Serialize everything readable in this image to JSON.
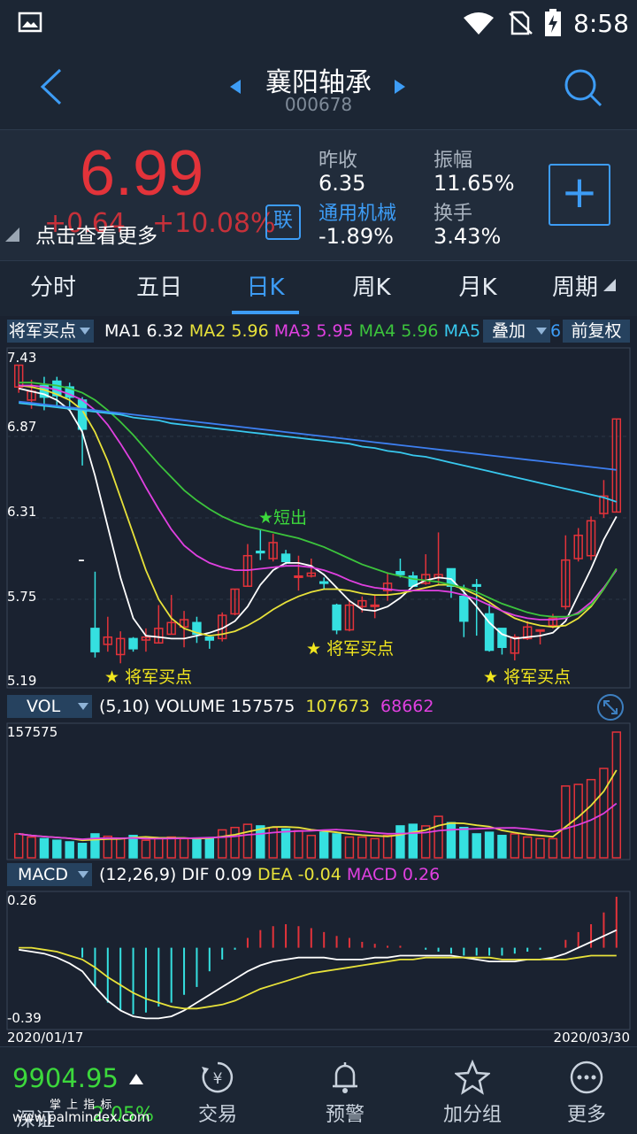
{
  "status": {
    "time": "8:58"
  },
  "header": {
    "title": "襄阳轴承",
    "code": "000678"
  },
  "quote": {
    "price": "6.99",
    "change": "+0.64",
    "change_pct": "+10.08%",
    "tap_hint": "点击查看更多",
    "link_badge": "联",
    "prev_close_label": "昨收",
    "prev_close": "6.35",
    "amplitude_label": "振幅",
    "amplitude": "11.65%",
    "sector_label": "通用机械",
    "sector_change": "-1.89%",
    "turnover_label": "换手",
    "turnover": "3.43%",
    "add_label": "+",
    "colors": {
      "up": "#e3333a",
      "down": "#35e0e0",
      "accent": "#3d9cf5"
    }
  },
  "tabs": [
    {
      "label": "分时"
    },
    {
      "label": "五日"
    },
    {
      "label": "日K"
    },
    {
      "label": "周K"
    },
    {
      "label": "月K"
    },
    {
      "label": "周期"
    }
  ],
  "ma_legend": {
    "indicator": "将军买点",
    "items": [
      {
        "label": "MA1",
        "value": "6.32",
        "color": "#ffffff"
      },
      {
        "label": "MA2",
        "value": "5.96",
        "color": "#e8e23a"
      },
      {
        "label": "MA3",
        "value": "5.95",
        "color": "#e040e0"
      },
      {
        "label": "MA4",
        "value": "5.96",
        "color": "#3cc43c"
      },
      {
        "label": "MA5",
        "value": "",
        "color": "#38c8ee"
      }
    ],
    "overlay": "叠加",
    "overlay_num": "6",
    "adjust": "前复权"
  },
  "price_axis": [
    "7.43",
    "6.87",
    "6.31",
    "5.75",
    "5.19"
  ],
  "signals": {
    "sell": "★短出",
    "buy": "★ 将军买点"
  },
  "vol_legend": {
    "indicator": "VOL",
    "params": "(5,10)",
    "volume_label": "VOLUME",
    "volume": "157575",
    "ma5": "107673",
    "ma10": "68662"
  },
  "vol_axis": {
    "max": "157575"
  },
  "macd_legend": {
    "indicator": "MACD",
    "params": "(12,26,9)",
    "dif_label": "DIF",
    "dif": "0.09",
    "dea_label": "DEA",
    "dea": "-0.04",
    "macd_label": "MACD",
    "macd": "0.26"
  },
  "macd_axis": {
    "max": "0.26",
    "min": "-0.39"
  },
  "dates": {
    "start": "2020/01/17",
    "end": "2020/03/30"
  },
  "chart_data": {
    "type": "candlestick",
    "candles": [
      {
        "o": 7.21,
        "c": 7.36,
        "h": 7.36,
        "l": 7.17
      },
      {
        "o": 7.12,
        "c": 7.18,
        "h": 7.26,
        "l": 7.06
      },
      {
        "o": 7.22,
        "c": 7.14,
        "h": 7.28,
        "l": 7.05
      },
      {
        "o": 7.25,
        "c": 7.15,
        "h": 7.28,
        "l": 7.07
      },
      {
        "o": 7.21,
        "c": 7.14,
        "h": 7.24,
        "l": 7.05
      },
      {
        "o": 7.12,
        "c": 6.92,
        "h": 7.14,
        "l": 6.67
      },
      {
        "o": 5.55,
        "c": 5.39,
        "h": 5.94,
        "l": 5.35
      },
      {
        "o": 5.44,
        "c": 5.49,
        "h": 5.63,
        "l": 5.39
      },
      {
        "o": 5.37,
        "c": 5.48,
        "h": 5.53,
        "l": 5.31
      },
      {
        "o": 5.48,
        "c": 5.41,
        "h": 5.49,
        "l": 5.39
      },
      {
        "o": 5.47,
        "c": 5.49,
        "h": 5.55,
        "l": 5.39
      },
      {
        "o": 5.45,
        "c": 5.55,
        "h": 5.71,
        "l": 5.45
      },
      {
        "o": 5.51,
        "c": 5.59,
        "h": 5.78,
        "l": 5.51
      },
      {
        "o": 5.56,
        "c": 5.61,
        "h": 5.67,
        "l": 5.42
      },
      {
        "o": 5.59,
        "c": 5.51,
        "h": 5.63,
        "l": 5.45
      },
      {
        "o": 5.49,
        "c": 5.47,
        "h": 5.49,
        "l": 5.41
      },
      {
        "o": 5.48,
        "c": 5.64,
        "h": 5.66,
        "l": 5.46
      },
      {
        "o": 5.65,
        "c": 5.82,
        "h": 5.82,
        "l": 5.64
      },
      {
        "o": 5.84,
        "c": 6.05,
        "h": 6.13,
        "l": 5.84
      },
      {
        "o": 6.08,
        "c": 6.07,
        "h": 6.23,
        "l": 6.02
      },
      {
        "o": 6.03,
        "c": 6.14,
        "h": 6.2,
        "l": 6.01
      },
      {
        "o": 6.06,
        "c": 6.01,
        "h": 6.09,
        "l": 5.99
      },
      {
        "o": 5.91,
        "c": 5.91,
        "h": 6.05,
        "l": 5.81
      },
      {
        "o": 5.91,
        "c": 5.93,
        "h": 6.03,
        "l": 5.9
      },
      {
        "o": 5.87,
        "c": 5.86,
        "h": 5.9,
        "l": 5.82
      },
      {
        "o": 5.71,
        "c": 5.54,
        "h": 5.72,
        "l": 5.51
      },
      {
        "o": 5.54,
        "c": 5.71,
        "h": 5.74,
        "l": 5.53
      },
      {
        "o": 5.7,
        "c": 5.74,
        "h": 5.77,
        "l": 5.66
      },
      {
        "o": 5.71,
        "c": 5.71,
        "h": 5.78,
        "l": 5.62
      },
      {
        "o": 5.81,
        "c": 5.86,
        "h": 5.93,
        "l": 5.74
      },
      {
        "o": 5.94,
        "c": 5.92,
        "h": 6.03,
        "l": 5.9
      },
      {
        "o": 5.91,
        "c": 5.84,
        "h": 5.94,
        "l": 5.84
      },
      {
        "o": 5.86,
        "c": 5.92,
        "h": 6.06,
        "l": 5.85
      },
      {
        "o": 5.9,
        "c": 5.92,
        "h": 6.21,
        "l": 5.85
      },
      {
        "o": 5.96,
        "c": 5.84,
        "h": 5.96,
        "l": 5.76
      },
      {
        "o": 5.77,
        "c": 5.6,
        "h": 5.85,
        "l": 5.49
      },
      {
        "o": 5.85,
        "c": 5.84,
        "h": 5.89,
        "l": 5.5
      },
      {
        "o": 5.65,
        "c": 5.4,
        "h": 5.72,
        "l": 5.39
      },
      {
        "o": 5.55,
        "c": 5.42,
        "h": 5.55,
        "l": 5.37
      },
      {
        "o": 5.38,
        "c": 5.49,
        "h": 5.51,
        "l": 5.33
      },
      {
        "o": 5.48,
        "c": 5.56,
        "h": 5.6,
        "l": 5.47
      },
      {
        "o": 5.54,
        "c": 5.54,
        "h": 5.54,
        "l": 5.44
      },
      {
        "o": 5.57,
        "c": 5.62,
        "h": 5.65,
        "l": 5.55
      },
      {
        "o": 5.7,
        "c": 6.02,
        "h": 6.19,
        "l": 5.68
      },
      {
        "o": 6.03,
        "c": 6.19,
        "h": 6.24,
        "l": 6.01
      },
      {
        "o": 6.05,
        "c": 6.29,
        "h": 6.32,
        "l": 6.02
      },
      {
        "o": 6.34,
        "c": 6.46,
        "h": 6.57,
        "l": 6.31
      },
      {
        "o": 6.35,
        "c": 6.99,
        "h": 6.99,
        "l": 6.35
      }
    ],
    "ma_lines": [
      {
        "name": "MA1",
        "values": [
          7.2,
          7.18,
          7.16,
          7.12,
          7.05,
          6.9,
          6.6,
          6.25,
          5.9,
          5.62,
          5.5,
          5.49,
          5.48,
          5.48,
          5.5,
          5.52,
          5.55,
          5.6,
          5.7,
          5.85,
          5.95,
          6.0,
          6.0,
          5.98,
          5.92,
          5.83,
          5.74,
          5.68,
          5.67,
          5.7,
          5.76,
          5.84,
          5.88,
          5.9,
          5.89,
          5.8,
          5.7,
          5.59,
          5.51,
          5.48,
          5.49,
          5.5,
          5.52,
          5.6,
          5.78,
          5.96,
          6.16,
          6.32
        ]
      },
      {
        "name": "MA2",
        "values": [
          7.22,
          7.21,
          7.19,
          7.16,
          7.12,
          7.05,
          6.9,
          6.7,
          6.45,
          6.2,
          5.95,
          5.75,
          5.62,
          5.55,
          5.52,
          5.5,
          5.51,
          5.53,
          5.57,
          5.62,
          5.68,
          5.73,
          5.77,
          5.8,
          5.82,
          5.82,
          5.81,
          5.79,
          5.78,
          5.78,
          5.79,
          5.81,
          5.83,
          5.85,
          5.85,
          5.82,
          5.78,
          5.73,
          5.67,
          5.62,
          5.59,
          5.57,
          5.56,
          5.57,
          5.62,
          5.7,
          5.82,
          5.96
        ]
      },
      {
        "name": "MA3",
        "values": [
          7.22,
          7.22,
          7.21,
          7.19,
          7.16,
          7.12,
          7.05,
          6.95,
          6.82,
          6.68,
          6.52,
          6.37,
          6.23,
          6.12,
          6.05,
          6.0,
          5.97,
          5.95,
          5.95,
          5.96,
          5.97,
          5.98,
          5.98,
          5.97,
          5.95,
          5.92,
          5.88,
          5.85,
          5.83,
          5.82,
          5.81,
          5.81,
          5.81,
          5.81,
          5.8,
          5.78,
          5.75,
          5.71,
          5.67,
          5.64,
          5.62,
          5.61,
          5.61,
          5.62,
          5.66,
          5.73,
          5.83,
          5.95
        ]
      },
      {
        "name": "MA4",
        "values": [
          7.24,
          7.24,
          7.23,
          7.22,
          7.2,
          7.17,
          7.12,
          7.05,
          6.97,
          6.88,
          6.78,
          6.68,
          6.59,
          6.5,
          6.43,
          6.37,
          6.32,
          6.28,
          6.25,
          6.23,
          6.21,
          6.19,
          6.17,
          6.14,
          6.11,
          6.07,
          6.03,
          5.99,
          5.96,
          5.93,
          5.91,
          5.89,
          5.88,
          5.87,
          5.85,
          5.83,
          5.8,
          5.76,
          5.72,
          5.69,
          5.66,
          5.64,
          5.63,
          5.63,
          5.65,
          5.71,
          5.82,
          5.96
        ]
      },
      {
        "name": "MA5",
        "values": [
          7.1,
          7.09,
          7.08,
          7.07,
          7.06,
          7.05,
          7.04,
          7.03,
          7.02,
          7.0,
          6.99,
          6.98,
          6.96,
          6.95,
          6.94,
          6.93,
          6.92,
          6.91,
          6.9,
          6.89,
          6.88,
          6.87,
          6.86,
          6.85,
          6.84,
          6.83,
          6.82,
          6.8,
          6.79,
          6.77,
          6.76,
          6.74,
          6.73,
          6.71,
          6.69,
          6.67,
          6.65,
          6.63,
          6.61,
          6.59,
          6.57,
          6.55,
          6.53,
          6.51,
          6.49,
          6.47,
          6.45,
          6.42
        ]
      },
      {
        "name": "MA6",
        "values": [
          7.11,
          7.1,
          7.09,
          7.08,
          7.07,
          7.06,
          7.05,
          7.04,
          7.03,
          7.02,
          7.01,
          7.0,
          6.99,
          6.98,
          6.97,
          6.96,
          6.95,
          6.94,
          6.93,
          6.92,
          6.91,
          6.9,
          6.89,
          6.88,
          6.87,
          6.86,
          6.85,
          6.84,
          6.83,
          6.82,
          6.81,
          6.8,
          6.79,
          6.78,
          6.77,
          6.76,
          6.75,
          6.74,
          6.73,
          6.72,
          6.71,
          6.7,
          6.69,
          6.68,
          6.67,
          6.66,
          6.65,
          6.64
        ]
      }
    ],
    "volume": [
      30000,
      26000,
      24000,
      22000,
      20000,
      18000,
      30000,
      27000,
      24000,
      28000,
      22000,
      25000,
      26000,
      24000,
      23000,
      25000,
      35000,
      38000,
      42000,
      40000,
      38000,
      36000,
      34000,
      28000,
      32000,
      30000,
      26000,
      26000,
      24000,
      28000,
      40000,
      42000,
      40000,
      52000,
      44000,
      38000,
      30000,
      32000,
      28000,
      30000,
      26000,
      24000,
      24000,
      90000,
      92000,
      98000,
      112000,
      157575
    ],
    "macd_bars": [
      0,
      0,
      0,
      0,
      0,
      -0.05,
      -0.2,
      -0.28,
      -0.32,
      -0.34,
      -0.33,
      -0.3,
      -0.28,
      -0.24,
      -0.2,
      -0.12,
      -0.06,
      -0.01,
      0.05,
      0.09,
      0.11,
      0.12,
      0.11,
      0.1,
      0.08,
      0.06,
      0.05,
      0.03,
      0.02,
      0.01,
      0.01,
      0.0,
      -0.01,
      -0.02,
      -0.03,
      -0.04,
      -0.04,
      -0.04,
      -0.04,
      -0.03,
      -0.02,
      -0.01,
      0.0,
      0.04,
      0.08,
      0.12,
      0.18,
      0.26
    ],
    "dif": [
      -0.01,
      -0.02,
      -0.03,
      -0.05,
      -0.08,
      -0.12,
      -0.2,
      -0.27,
      -0.32,
      -0.35,
      -0.36,
      -0.36,
      -0.35,
      -0.32,
      -0.28,
      -0.24,
      -0.2,
      -0.16,
      -0.12,
      -0.09,
      -0.07,
      -0.06,
      -0.05,
      -0.05,
      -0.05,
      -0.06,
      -0.06,
      -0.06,
      -0.05,
      -0.05,
      -0.04,
      -0.04,
      -0.04,
      -0.04,
      -0.04,
      -0.05,
      -0.06,
      -0.07,
      -0.07,
      -0.07,
      -0.06,
      -0.06,
      -0.05,
      -0.03,
      0.0,
      0.03,
      0.06,
      0.09
    ],
    "dea": [
      0.0,
      0.0,
      -0.01,
      -0.02,
      -0.04,
      -0.06,
      -0.1,
      -0.15,
      -0.19,
      -0.23,
      -0.26,
      -0.28,
      -0.3,
      -0.31,
      -0.31,
      -0.3,
      -0.29,
      -0.27,
      -0.24,
      -0.21,
      -0.19,
      -0.17,
      -0.15,
      -0.13,
      -0.12,
      -0.11,
      -0.1,
      -0.09,
      -0.08,
      -0.07,
      -0.06,
      -0.06,
      -0.05,
      -0.05,
      -0.05,
      -0.05,
      -0.05,
      -0.05,
      -0.06,
      -0.06,
      -0.06,
      -0.06,
      -0.06,
      -0.06,
      -0.05,
      -0.04,
      -0.04,
      -0.04
    ],
    "price_range": [
      5.19,
      7.43
    ],
    "macd_range": [
      -0.39,
      0.26
    ]
  },
  "bottom_nav": {
    "index_value": "9904.95",
    "index_name": "深证",
    "index_change": "2.05%",
    "items": [
      {
        "label": "交易"
      },
      {
        "label": "预警"
      },
      {
        "label": "加分组"
      },
      {
        "label": "更多"
      }
    ],
    "watermark_top": "掌 上 指 标",
    "watermark": "www.palmindex.com"
  }
}
